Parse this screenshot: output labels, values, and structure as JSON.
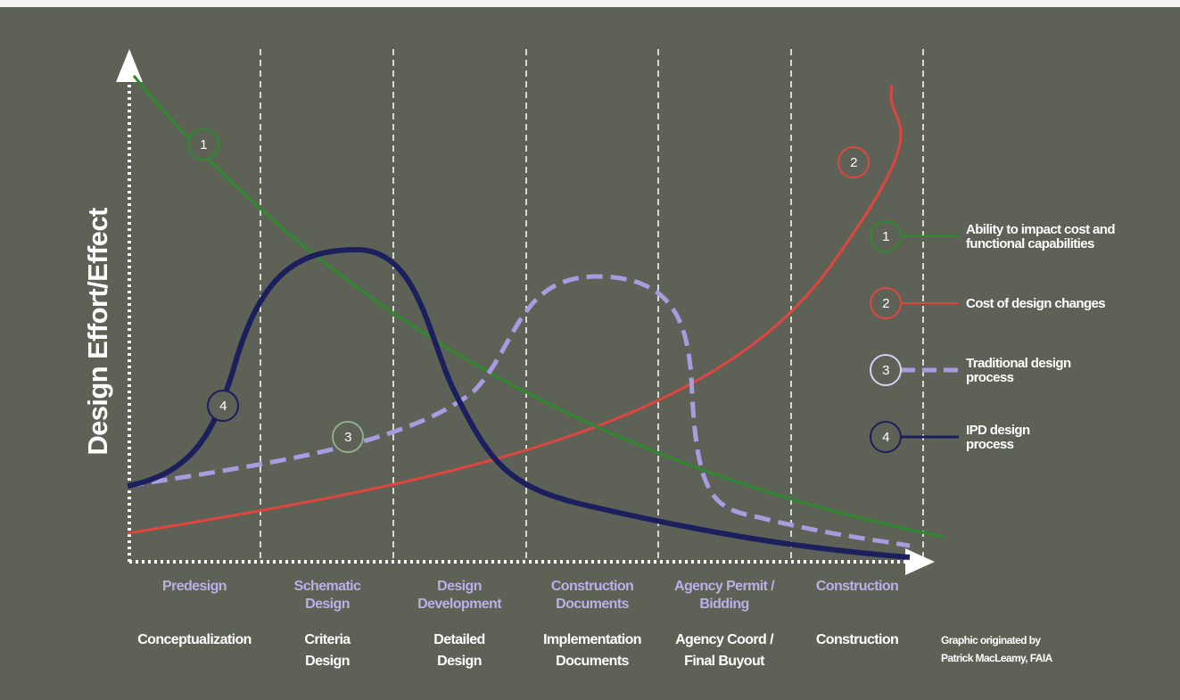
{
  "y_axis_label": "Design Effort/Effect",
  "phases": [
    {
      "top": [
        "Predesign"
      ],
      "bottom": [
        "Conceptualization"
      ]
    },
    {
      "top": [
        "Schematic",
        "Design"
      ],
      "bottom": [
        "Criteria",
        "Design"
      ]
    },
    {
      "top": [
        "Design",
        "Development"
      ],
      "bottom": [
        "Detailed",
        "Design"
      ]
    },
    {
      "top": [
        "Construction",
        "Documents"
      ],
      "bottom": [
        "Implementation",
        "Documents"
      ]
    },
    {
      "top": [
        "Agency Permit /",
        "Bidding"
      ],
      "bottom": [
        "Agency Coord /",
        "Final Buyout"
      ]
    },
    {
      "top": [
        "Construction"
      ],
      "bottom": [
        "Construction"
      ]
    }
  ],
  "legend": [
    {
      "number": "1",
      "label": [
        "Ability to impact cost and",
        "functional capabilities"
      ]
    },
    {
      "number": "2",
      "label": [
        "Cost of design changes"
      ]
    },
    {
      "number": "3",
      "label": [
        "Traditional design",
        "process"
      ]
    },
    {
      "number": "4",
      "label": [
        "IPD design",
        "process"
      ]
    }
  ],
  "credit": [
    "Graphic originated by",
    "Patrick MacLeamy, FAIA"
  ]
}
